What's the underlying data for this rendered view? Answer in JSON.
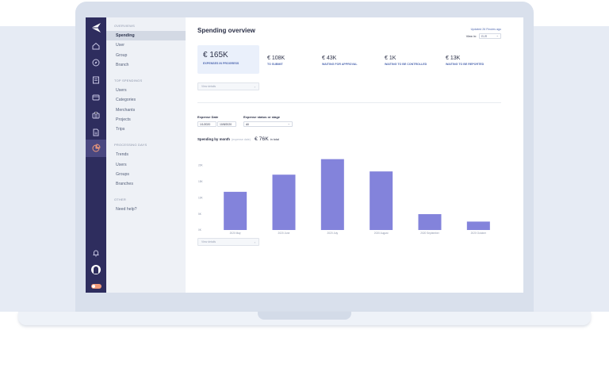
{
  "sidebar": {
    "sections": [
      {
        "title": "Overviews",
        "items": [
          "Spending",
          "User",
          "Group",
          "Branch"
        ]
      },
      {
        "title": "Top spendings",
        "items": [
          "Users",
          "Categories",
          "Merchants",
          "Projects",
          "Trips"
        ]
      },
      {
        "title": "Processing days",
        "items": [
          "Trends",
          "Users",
          "Groups",
          "Branches"
        ]
      },
      {
        "title": "Other",
        "items": [
          "Need help?"
        ]
      }
    ],
    "active_item": "Spending"
  },
  "header": {
    "title": "Spending overview",
    "updated": "Updated 26 Finutes ago",
    "view_in_label": "View in:",
    "view_in_value": "EUR"
  },
  "kpis": {
    "main": {
      "value": "€ 165K",
      "label": "Expenses in progress"
    },
    "others": [
      {
        "value": "€ 108K",
        "label": "To submit"
      },
      {
        "value": "€ 43K",
        "label": "Waiting for approval"
      },
      {
        "value": "€ 1K",
        "label": "Waiting to be controlled"
      },
      {
        "value": "€ 13K",
        "label": "Waiting to be reported"
      }
    ],
    "details_select": "View details"
  },
  "filters": {
    "expense_date_label": "Expense Date",
    "date_from": "1/1/2020",
    "date_to": "10/8/2020",
    "status_label": "Expense status or stage",
    "status_value": "All"
  },
  "chart_header": {
    "title": "Spending by month",
    "subtitle": "(expense date)",
    "total": "€ 76K",
    "total_suffix": "in total",
    "details_select": "View details"
  },
  "chart_data": {
    "type": "bar",
    "categories": [
      "2020 May",
      "2020 June",
      "2020 July",
      "2020 August",
      "2020 September",
      "2020 October"
    ],
    "values": [
      11.8,
      17.1,
      21.9,
      18.1,
      4.9,
      2.6
    ],
    "yticks": [
      "20K",
      "15K",
      "10K",
      "5K",
      "0K"
    ],
    "ylim": [
      0,
      25
    ],
    "grid": false,
    "color": "#8383db"
  },
  "colors": {
    "rail": "#2e2d5e",
    "accent": "#4f68b0",
    "bar": "#8383db",
    "active_icon": "#f09a7a"
  }
}
